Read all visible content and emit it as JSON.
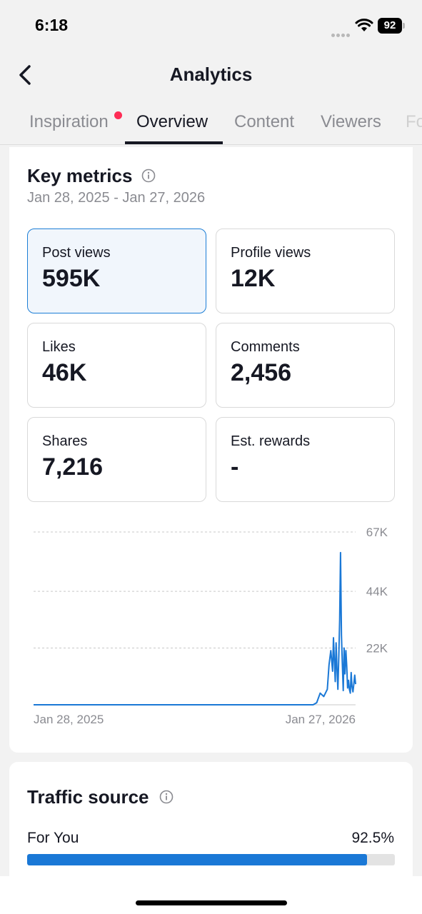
{
  "status_bar": {
    "time": "6:18",
    "battery": "92"
  },
  "header": {
    "title": "Analytics"
  },
  "tabs": [
    {
      "label": "Inspiration",
      "has_dot": true
    },
    {
      "label": "Overview",
      "active": true
    },
    {
      "label": "Content"
    },
    {
      "label": "Viewers"
    },
    {
      "label": "Fo"
    }
  ],
  "key_metrics": {
    "title": "Key metrics",
    "date_range": "Jan 28, 2025 - Jan 27, 2026",
    "tiles": [
      {
        "label": "Post views",
        "value": "595K",
        "selected": true
      },
      {
        "label": "Profile views",
        "value": "12K"
      },
      {
        "label": "Likes",
        "value": "46K"
      },
      {
        "label": "Comments",
        "value": "2,456"
      },
      {
        "label": "Shares",
        "value": "7,216"
      },
      {
        "label": "Est. rewards",
        "value": "-"
      }
    ]
  },
  "chart_data": {
    "type": "line",
    "series_color": "#1a78d6",
    "ylim": [
      0,
      67000
    ],
    "y_ticks": [
      "67K",
      "44K",
      "22K"
    ],
    "x_tick_labels": [
      "Jan 28, 2025",
      "Jan 27, 2026"
    ],
    "x_start": "2025-01-28",
    "x_end": "2026-01-27",
    "grid": "dashed horizontal",
    "series": [
      {
        "x": [
          "2025-01-28",
          "2025-12-10",
          "2025-12-14",
          "2025-12-18",
          "2025-12-22",
          "2025-12-26",
          "2025-12-28",
          "2025-12-30",
          "2026-01-01",
          "2026-01-02",
          "2026-01-03",
          "2026-01-04",
          "2026-01-05",
          "2026-01-06",
          "2026-01-07",
          "2026-01-08",
          "2026-01-09",
          "2026-01-10",
          "2026-01-11",
          "2026-01-12",
          "2026-01-13",
          "2026-01-14",
          "2026-01-15",
          "2026-01-16",
          "2026-01-17",
          "2026-01-18",
          "2026-01-19",
          "2026-01-20",
          "2026-01-21",
          "2026-01-22",
          "2026-01-23",
          "2026-01-24",
          "2026-01-25",
          "2026-01-26",
          "2026-01-27"
        ],
        "values": [
          0,
          0,
          800,
          4500,
          3200,
          6000,
          15500,
          21000,
          13000,
          26000,
          17000,
          9000,
          24000,
          13500,
          6000,
          19000,
          33000,
          59000,
          27000,
          16000,
          5500,
          22000,
          12000,
          21000,
          15000,
          6500,
          9500,
          6000,
          4500,
          12500,
          7000,
          5000,
          8000,
          11500,
          8000
        ]
      }
    ]
  },
  "traffic_source": {
    "title": "Traffic source",
    "items": [
      {
        "label": "For You",
        "value": "92.5%",
        "fraction": 0.925
      }
    ]
  }
}
